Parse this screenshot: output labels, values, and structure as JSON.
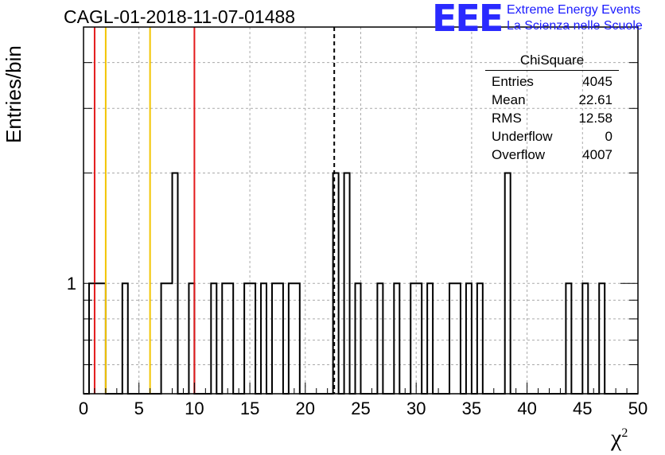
{
  "header": {
    "title": "CAGL-01-2018-11-07-01488",
    "logo": "EEE",
    "logo_line1": "Extreme Energy Events",
    "logo_line2": "La Scienza nelle Scuole"
  },
  "stats": {
    "name": "ChiSquare",
    "rows": [
      {
        "label": "Entries",
        "value": "4045"
      },
      {
        "label": "Mean",
        "value": "22.61"
      },
      {
        "label": "RMS",
        "value": "12.58"
      },
      {
        "label": "Underflow",
        "value": "0"
      },
      {
        "label": "Overflow",
        "value": "4007"
      }
    ]
  },
  "chart_data": {
    "type": "histogram",
    "title": "CAGL-01-2018-11-07-01488",
    "xlabel": "χ²",
    "ylabel": "Entries/bin",
    "xlim": [
      0,
      50
    ],
    "ylim": [
      0.5,
      5
    ],
    "y_scale": "log",
    "bin_width": 0.5,
    "x_ticks": [
      0,
      5,
      10,
      15,
      20,
      25,
      30,
      35,
      40,
      45,
      50
    ],
    "y_tick_labels": [
      "1"
    ],
    "grid": true,
    "bins": [
      {
        "x0": 0.5,
        "count": 1
      },
      {
        "x0": 1.0,
        "count": 1
      },
      {
        "x0": 1.5,
        "count": 1
      },
      {
        "x0": 3.5,
        "count": 1
      },
      {
        "x0": 7.0,
        "count": 1
      },
      {
        "x0": 7.5,
        "count": 1
      },
      {
        "x0": 8.0,
        "count": 2
      },
      {
        "x0": 9.5,
        "count": 1
      },
      {
        "x0": 11.5,
        "count": 1
      },
      {
        "x0": 12.5,
        "count": 1
      },
      {
        "x0": 13.0,
        "count": 1
      },
      {
        "x0": 14.5,
        "count": 1
      },
      {
        "x0": 15.0,
        "count": 1
      },
      {
        "x0": 16.0,
        "count": 1
      },
      {
        "x0": 17.0,
        "count": 1
      },
      {
        "x0": 17.5,
        "count": 1
      },
      {
        "x0": 18.5,
        "count": 1
      },
      {
        "x0": 19.0,
        "count": 1
      },
      {
        "x0": 22.5,
        "count": 2
      },
      {
        "x0": 23.5,
        "count": 2
      },
      {
        "x0": 24.5,
        "count": 1
      },
      {
        "x0": 26.5,
        "count": 1
      },
      {
        "x0": 28.0,
        "count": 1
      },
      {
        "x0": 29.5,
        "count": 1
      },
      {
        "x0": 30.0,
        "count": 1
      },
      {
        "x0": 31.0,
        "count": 1
      },
      {
        "x0": 33.0,
        "count": 1
      },
      {
        "x0": 33.5,
        "count": 1
      },
      {
        "x0": 34.5,
        "count": 1
      },
      {
        "x0": 35.5,
        "count": 1
      },
      {
        "x0": 38.0,
        "count": 2
      },
      {
        "x0": 43.5,
        "count": 1
      },
      {
        "x0": 45.0,
        "count": 1
      },
      {
        "x0": 46.5,
        "count": 1
      }
    ],
    "vertical_lines": [
      {
        "x": 1.0,
        "color": "#e31a1c",
        "style": "solid"
      },
      {
        "x": 2.0,
        "color": "#f2c400",
        "style": "solid"
      },
      {
        "x": 6.0,
        "color": "#f2c400",
        "style": "solid"
      },
      {
        "x": 10.0,
        "color": "#e31a1c",
        "style": "solid"
      },
      {
        "x": 22.61,
        "color": "#000000",
        "style": "dashed"
      }
    ]
  }
}
